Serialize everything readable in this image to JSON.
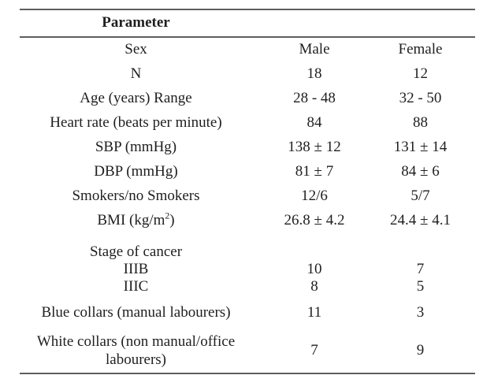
{
  "page": {
    "background_color": "#ffffff",
    "rule_color": "#5e5e5e",
    "text_color": "#1f1f1f"
  },
  "table": {
    "title": "Parameter",
    "rows": [
      {
        "param": "Sex",
        "male": "Male",
        "female": "Female"
      },
      {
        "param": "N",
        "male": "18",
        "female": "12"
      },
      {
        "param": "Age (years) Range",
        "male": "28 - 48",
        "female": "32 - 50"
      },
      {
        "param": "Heart rate (beats per minute)",
        "male": "84",
        "female": "88"
      },
      {
        "param": "SBP (mmHg)",
        "male": "138 ± 12",
        "female": "131 ± 14"
      },
      {
        "param": "DBP (mmHg)",
        "male": "81 ± 7",
        "female": "84 ± 6"
      },
      {
        "param": "Smokers/no Smokers",
        "male": "12/6",
        "female": "5/7"
      }
    ],
    "bmi_row": {
      "label_main": "BMI (kg/m",
      "label_sup": "2",
      "label_close": ")",
      "male": "26.8 ± 4.2",
      "female": "24.4 ± 4.1"
    },
    "stage_group": {
      "label": "Stage of cancer",
      "sub_rows": [
        {
          "param": "IIIB",
          "male": "10",
          "female": "7"
        },
        {
          "param": "IIIC",
          "male": "8",
          "female": "5"
        }
      ]
    },
    "blue_collar_row": {
      "param": "Blue collars (manual labourers)",
      "male": "11",
      "female": "3"
    },
    "white_collar_row": {
      "param": "White collars (non manual/office labourers)",
      "male": "7",
      "female": "9"
    }
  }
}
